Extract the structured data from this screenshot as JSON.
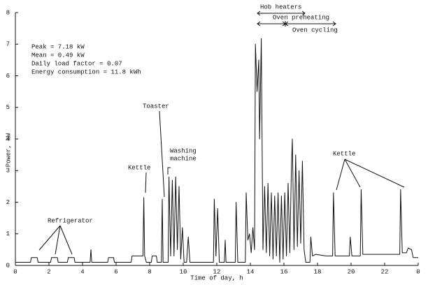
{
  "chart_data": {
    "type": "line",
    "x_label": "Time of day, h",
    "y_label": "Power, kW",
    "xlim": [
      0,
      24
    ],
    "ylim": [
      0,
      8
    ],
    "xticks": [
      0,
      2,
      4,
      6,
      8,
      10,
      12,
      14,
      16,
      18,
      20,
      22,
      {
        "value": 24,
        "label": "0"
      }
    ],
    "yticks": [
      0,
      1,
      2,
      3,
      4,
      5,
      6,
      7,
      8
    ],
    "color": "#111111",
    "stats": [
      "Peak = 7.18 kW",
      "Mean = 0.49 kW",
      "Daily load factor = 0.07",
      "Energy consumption = 11.8 kWh"
    ],
    "annotations": [
      "Refrigerator",
      "Kettle",
      "Toaster",
      "Washing",
      "machine",
      "Kettle",
      "Hob heaters",
      "Oven preheating",
      "Oven cycling"
    ],
    "x": [
      0,
      0.9,
      0.95,
      1.3,
      1.35,
      2.1,
      2.15,
      2.5,
      2.55,
      3.1,
      3.15,
      3.5,
      3.55,
      4.45,
      4.5,
      4.55,
      5.5,
      5.55,
      5.85,
      5.9,
      6.9,
      6.95,
      7.6,
      7.65,
      7.7,
      7.8,
      8.1,
      8.15,
      8.4,
      8.45,
      8.7,
      8.75,
      8.8,
      9.1,
      9.15,
      9.25,
      9.35,
      9.45,
      9.55,
      9.65,
      9.75,
      9.85,
      9.95,
      10.05,
      10.2,
      10.3,
      10.4,
      11.8,
      11.85,
      11.95,
      12.05,
      12.15,
      12.45,
      12.5,
      12.55,
      13.1,
      13.15,
      13.25,
      13.7,
      13.75,
      13.85,
      13.95,
      14.05,
      14.15,
      14.25,
      14.3,
      14.4,
      14.5,
      14.55,
      14.65,
      14.75,
      14.85,
      14.95,
      15.05,
      15.15,
      15.25,
      15.35,
      15.45,
      15.55,
      15.65,
      15.75,
      15.85,
      15.95,
      16.05,
      16.15,
      16.25,
      16.35,
      16.45,
      16.5,
      16.6,
      16.7,
      16.8,
      16.9,
      17.0,
      17.1,
      17.2,
      17.3,
      17.55,
      17.6,
      17.7,
      17.9,
      18.5,
      18.9,
      18.95,
      19.05,
      19.9,
      19.95,
      20.05,
      20.55,
      20.6,
      20.7,
      22.9,
      22.95,
      23.05,
      23.3,
      23.4,
      23.6,
      23.7,
      24
    ],
    "values": [
      0.1,
      0.1,
      0.25,
      0.25,
      0.1,
      0.1,
      0.25,
      0.25,
      0.1,
      0.1,
      0.25,
      0.25,
      0.1,
      0.1,
      0.5,
      0.1,
      0.1,
      0.25,
      0.25,
      0.1,
      0.1,
      0.3,
      0.3,
      2.15,
      0.3,
      0.1,
      0.1,
      0.3,
      0.3,
      0.1,
      0.1,
      2.1,
      0.1,
      0.1,
      2.8,
      0.3,
      2.7,
      0.3,
      2.8,
      0.5,
      2.5,
      0.2,
      1.2,
      0.1,
      0.1,
      0.9,
      0.1,
      0.1,
      2.1,
      0.3,
      1.8,
      0.1,
      0.1,
      0.8,
      0.1,
      0.1,
      2.0,
      0.1,
      0.1,
      2.3,
      0.8,
      1.0,
      0.4,
      1.2,
      0.5,
      7.0,
      5.5,
      6.5,
      4.0,
      7.18,
      0.5,
      2.5,
      0.4,
      2.6,
      0.3,
      2.3,
      0.2,
      2.2,
      0.3,
      2.3,
      0.1,
      2.2,
      0.2,
      2.3,
      0.3,
      2.6,
      0.4,
      3.2,
      4.0,
      0.5,
      3.5,
      0.6,
      3.0,
      0.7,
      3.3,
      0.5,
      0.1,
      0.1,
      0.9,
      0.3,
      0.35,
      0.3,
      0.3,
      2.3,
      0.3,
      0.3,
      0.9,
      0.3,
      0.3,
      2.4,
      0.35,
      0.35,
      2.4,
      0.4,
      0.4,
      0.55,
      0.5,
      0.25,
      0.25
    ]
  }
}
